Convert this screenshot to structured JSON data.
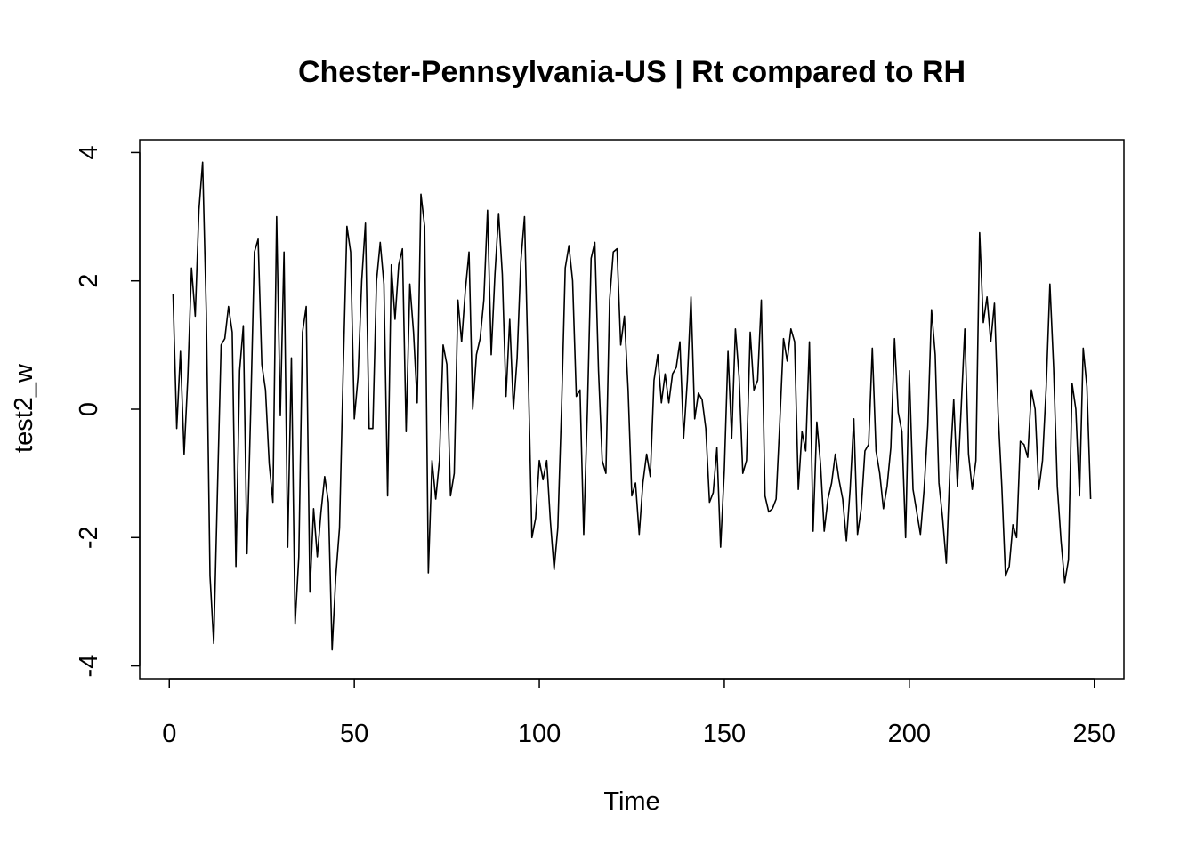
{
  "chart_data": {
    "type": "line",
    "title": "Chester-Pennsylvania-US | Rt compared to RH",
    "xlabel": "Time",
    "ylabel": "test2_w",
    "xlim": [
      -8,
      258
    ],
    "ylim": [
      -4.2,
      4.2
    ],
    "x_ticks": [
      0,
      50,
      100,
      150,
      200,
      250
    ],
    "y_ticks": [
      -4,
      -2,
      0,
      2,
      4
    ],
    "grid": false,
    "series": [
      {
        "x_start": 1,
        "values": [
          1.8,
          -0.3,
          0.9,
          -0.7,
          0.5,
          2.2,
          1.45,
          3.1,
          3.85,
          1.5,
          -2.6,
          -3.65,
          -1.3,
          1.0,
          1.1,
          1.6,
          1.2,
          -2.45,
          0.6,
          1.3,
          -2.25,
          0.0,
          2.45,
          2.65,
          0.7,
          0.3,
          -0.85,
          -1.45,
          3.0,
          -0.1,
          2.45,
          -2.15,
          0.8,
          -3.35,
          -2.3,
          1.2,
          1.6,
          -2.85,
          -1.55,
          -2.3,
          -1.6,
          -1.05,
          -1.45,
          -3.75,
          -2.6,
          -1.85,
          0.6,
          2.85,
          2.45,
          -0.15,
          0.5,
          2.0,
          2.9,
          -0.3,
          -0.3,
          2.0,
          2.6,
          1.95,
          -1.35,
          2.25,
          1.4,
          2.25,
          2.5,
          -0.35,
          1.95,
          1.2,
          0.1,
          3.35,
          2.85,
          -2.55,
          -0.8,
          -1.4,
          -0.8,
          1.0,
          0.7,
          -1.35,
          -1.0,
          1.7,
          1.05,
          1.85,
          2.45,
          0.0,
          0.85,
          1.1,
          1.7,
          3.1,
          0.85,
          2.1,
          3.05,
          2.1,
          0.2,
          1.4,
          0.0,
          0.8,
          2.3,
          3.0,
          0.6,
          -2.0,
          -1.7,
          -0.8,
          -1.1,
          -0.8,
          -1.75,
          -2.5,
          -1.85,
          0.0,
          2.2,
          2.55,
          2.0,
          0.2,
          0.3,
          -1.95,
          0.0,
          2.35,
          2.6,
          0.6,
          -0.8,
          -1.0,
          1.7,
          2.45,
          2.5,
          1.0,
          1.45,
          0.3,
          -1.35,
          -1.15,
          -1.95,
          -1.15,
          -0.7,
          -1.05,
          0.45,
          0.85,
          0.1,
          0.55,
          0.1,
          0.55,
          0.65,
          1.05,
          -0.45,
          0.45,
          1.75,
          -0.15,
          0.25,
          0.15,
          -0.3,
          -1.45,
          -1.3,
          -0.6,
          -2.15,
          -0.95,
          0.9,
          -0.45,
          1.25,
          0.5,
          -1.0,
          -0.8,
          1.2,
          0.3,
          0.45,
          1.7,
          -1.35,
          -1.6,
          -1.55,
          -1.4,
          -0.2,
          1.1,
          0.75,
          1.25,
          1.05,
          -1.25,
          -0.35,
          -0.65,
          1.05,
          -1.9,
          -0.2,
          -0.85,
          -1.9,
          -1.4,
          -1.15,
          -0.7,
          -1.1,
          -1.4,
          -2.05,
          -1.25,
          -0.15,
          -1.95,
          -1.55,
          -0.65,
          -0.55,
          0.95,
          -0.65,
          -1.0,
          -1.55,
          -1.2,
          -0.6,
          1.1,
          -0.05,
          -0.35,
          -2.0,
          0.6,
          -1.25,
          -1.6,
          -1.95,
          -1.25,
          -0.25,
          1.55,
          0.85,
          -1.15,
          -1.7,
          -2.4,
          -0.9,
          0.15,
          -1.2,
          0.0,
          1.25,
          -0.7,
          -1.25,
          -0.8,
          2.75,
          1.35,
          1.75,
          1.05,
          1.65,
          -0.05,
          -1.2,
          -2.6,
          -2.45,
          -1.8,
          -2.0,
          -0.5,
          -0.55,
          -0.75,
          0.3,
          0.0,
          -1.25,
          -0.8,
          0.35,
          1.95,
          0.65,
          -1.2,
          -2.05,
          -2.7,
          -2.35,
          0.4,
          0.0,
          -1.35,
          0.95,
          0.35,
          -1.4
        ]
      }
    ]
  }
}
